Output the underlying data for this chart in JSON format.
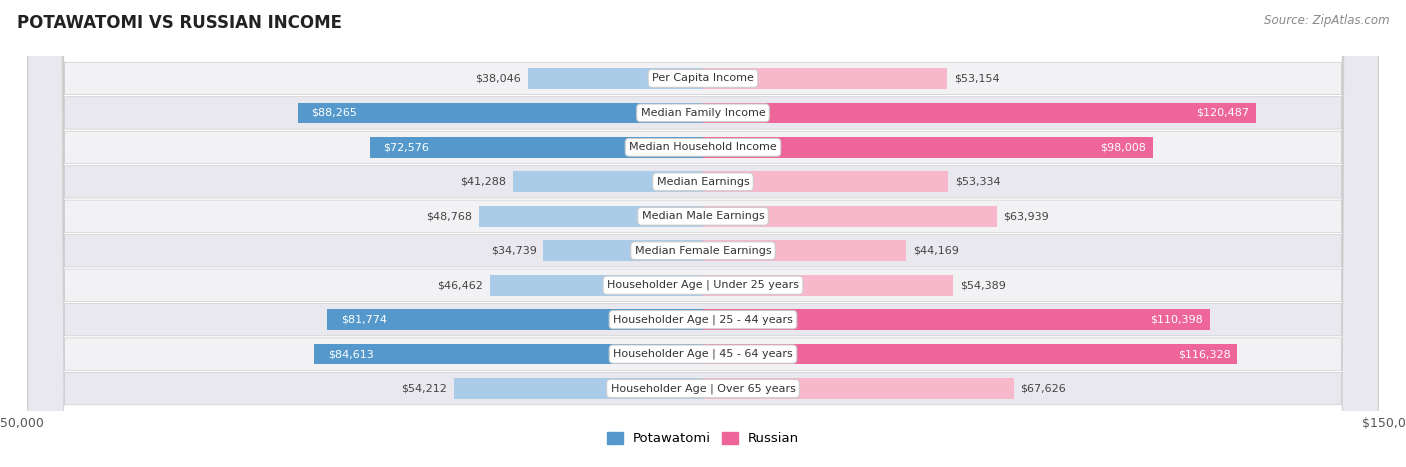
{
  "title": "POTAWATOMI VS RUSSIAN INCOME",
  "source": "Source: ZipAtlas.com",
  "categories": [
    "Per Capita Income",
    "Median Family Income",
    "Median Household Income",
    "Median Earnings",
    "Median Male Earnings",
    "Median Female Earnings",
    "Householder Age | Under 25 years",
    "Householder Age | 25 - 44 years",
    "Householder Age | 45 - 64 years",
    "Householder Age | Over 65 years"
  ],
  "potawatomi": [
    38046,
    88265,
    72576,
    41288,
    48768,
    34739,
    46462,
    81774,
    84613,
    54212
  ],
  "russian": [
    53154,
    120487,
    98008,
    53334,
    63939,
    44169,
    54389,
    110398,
    116328,
    67626
  ],
  "potawatomi_labels": [
    "$38,046",
    "$88,265",
    "$72,576",
    "$41,288",
    "$48,768",
    "$34,739",
    "$46,462",
    "$81,774",
    "$84,613",
    "$54,212"
  ],
  "russian_labels": [
    "$53,154",
    "$120,487",
    "$98,008",
    "$53,334",
    "$63,939",
    "$44,169",
    "$54,389",
    "$110,398",
    "$116,328",
    "$67,626"
  ],
  "max_val": 150000,
  "bar_color_potawatomi_light": "#aacce8",
  "bar_color_potawatomi_dark": "#5599cc",
  "bar_color_russian_light": "#f8b8cc",
  "bar_color_russian_dark": "#ee6699",
  "highlight_rows": [
    1,
    2,
    7,
    8
  ],
  "bg_color": "#ffffff",
  "row_colors": [
    "#f2f2f5",
    "#e8e8ee"
  ],
  "label_color_dark": "#555555",
  "white_label_threshold": 60000
}
